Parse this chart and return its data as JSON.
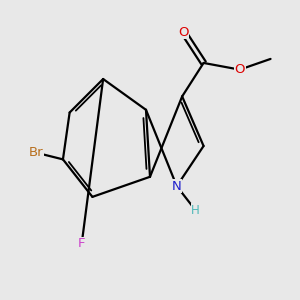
{
  "background_color": "#e8e8e8",
  "bond_color": "#000000",
  "atom_colors": {
    "Br": "#b87020",
    "F": "#cc44cc",
    "N": "#2020cc",
    "O": "#dd0000",
    "H_color": "#4db8b8"
  },
  "figsize": [
    3.0,
    3.0
  ],
  "dpi": 100
}
